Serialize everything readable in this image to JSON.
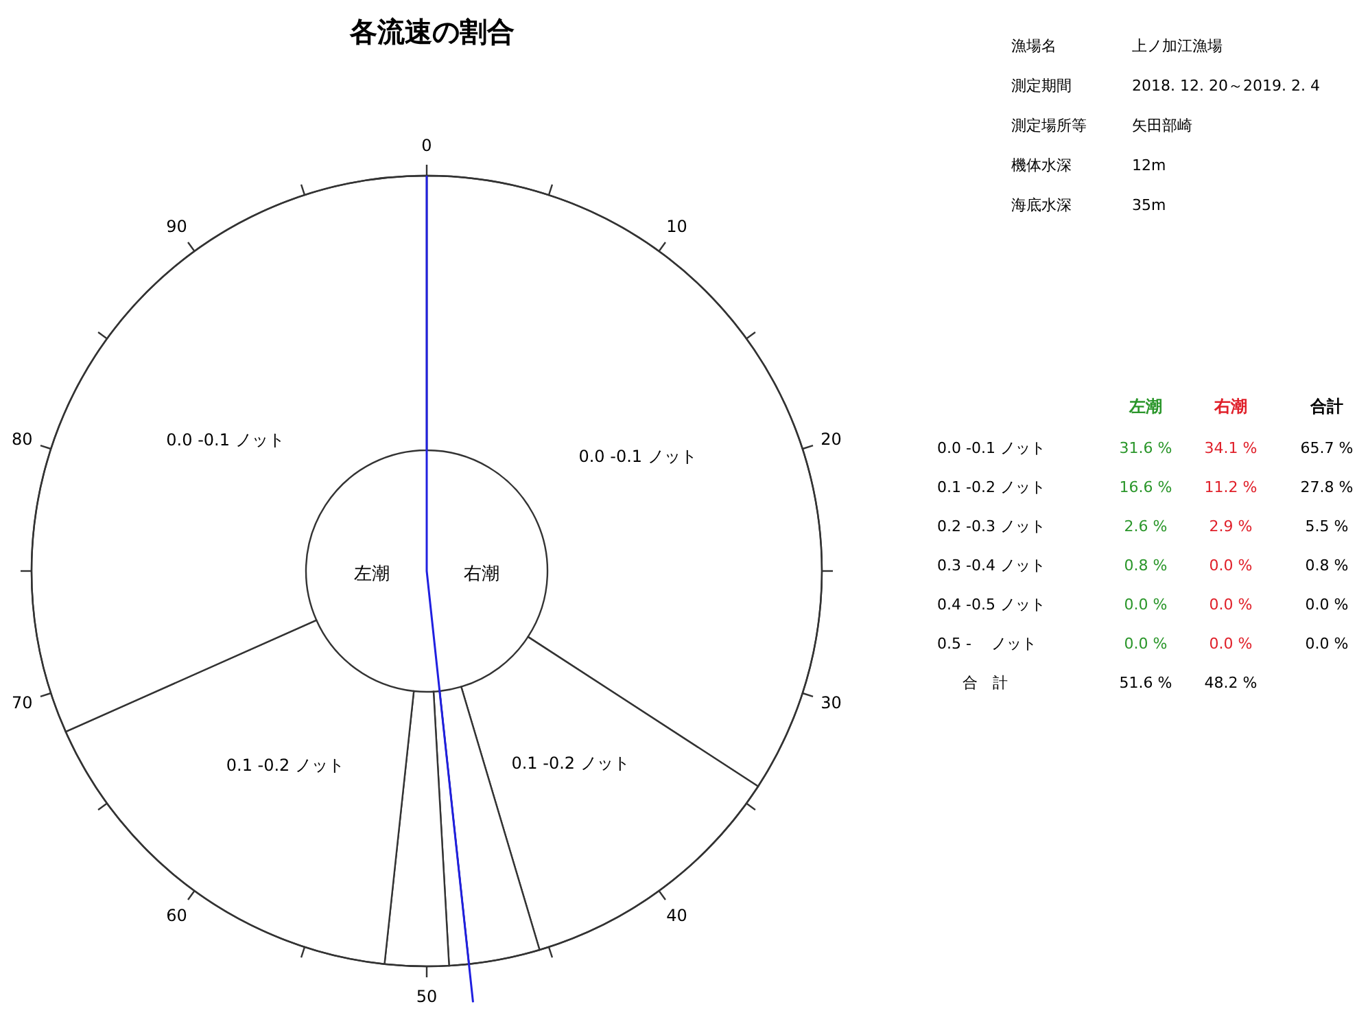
{
  "chart_data": [
    {
      "type": "donut",
      "title": "各流速の割合",
      "categories": [
        "0.0 -0.1 ノット",
        "0.1 -0.2 ノット",
        null,
        null,
        null,
        "0.1 -0.2 ノット",
        "0.0 -0.1 ノット"
      ],
      "values": [
        34.1,
        11.2,
        2.9,
        0.8,
        2.6,
        16.6,
        31.6
      ],
      "colors": [
        "#ffffff",
        "#ffffff",
        "#ffffff",
        "#ffffff",
        "#ffffff",
        "#ffffff",
        "#ffffff"
      ],
      "annotations": [
        "左潮",
        "右潮",
        "0",
        "10",
        "20",
        "30",
        "40",
        "50",
        "60",
        "70",
        "80",
        "90"
      ]
    },
    {
      "type": "other",
      "annotations": [
        "漁場名",
        "上ノ加江漁場",
        "測定期間",
        "2018. 12. 20～2019. 2. 4",
        "測定場所等",
        "矢田部崎",
        "機体水深",
        "12m",
        "海底水深",
        "35m"
      ],
      "categories": [
        "左潮",
        "右潮",
        "合計"
      ],
      "colors": [
        "#2a962a",
        "#e0202a",
        "#000000"
      ],
      "y_categories": [
        "0.0 -0.1 ノット",
        "0.1 -0.2 ノット",
        "0.2 -0.3 ノット",
        "0.3 -0.4 ノット",
        "0.4 -0.5 ノット",
        "0.5 -　 ノット",
        "合　計"
      ],
      "cell_labels": [
        [
          "31.6 %",
          "34.1 %",
          "65.7 %"
        ],
        [
          "16.6 %",
          "11.2 %",
          "27.8 %"
        ],
        [
          "2.6 %",
          "2.9 %",
          "5.5 %"
        ],
        [
          "0.8 %",
          "0.0 %",
          "0.8 %"
        ],
        [
          "0.0 %",
          "0.0 %",
          "0.0 %"
        ],
        [
          "0.0 %",
          "0.0 %",
          "0.0 %"
        ],
        [
          "51.6 %",
          "48.2 %",
          null
        ]
      ]
    }
  ]
}
